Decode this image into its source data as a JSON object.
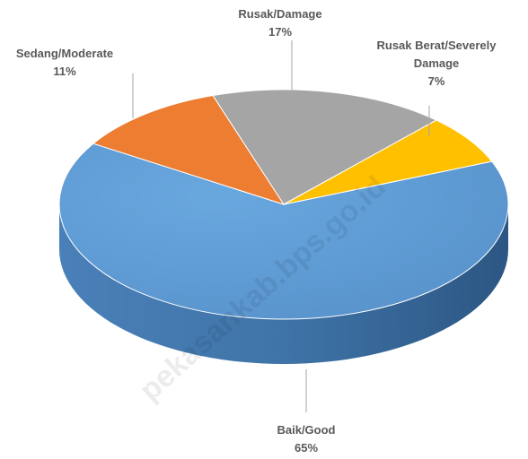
{
  "chart_data": {
    "type": "pie",
    "title": "",
    "slices": [
      {
        "name": "Baik/Good",
        "value": 65,
        "label": "65%",
        "color": "#5b9bd5",
        "side": "#3f74a8"
      },
      {
        "name": "Sedang/Moderate",
        "value": 11,
        "label": "11%",
        "color": "#ed7d31",
        "side": "#b35a1e"
      },
      {
        "name": "Rusak/Damage",
        "value": 17,
        "label": "17%",
        "color": "#a5a5a5",
        "side": "#7a7a7a"
      },
      {
        "name": "Rusak Berat/Severely Damage",
        "value": 7,
        "label": "7%",
        "color": "#ffc000",
        "side": "#c49300"
      }
    ],
    "label_lines": {
      "good": [
        "Baik/Good",
        "65%"
      ],
      "moderate": [
        "Sedang/Moderate",
        "11%"
      ],
      "damage": [
        "Rusak/Damage",
        "17%"
      ],
      "severe": [
        "Rusak Berat/Severely",
        "Damage",
        "7%"
      ]
    },
    "style": "3d"
  },
  "watermark": "pekasankab.bps.go.id"
}
